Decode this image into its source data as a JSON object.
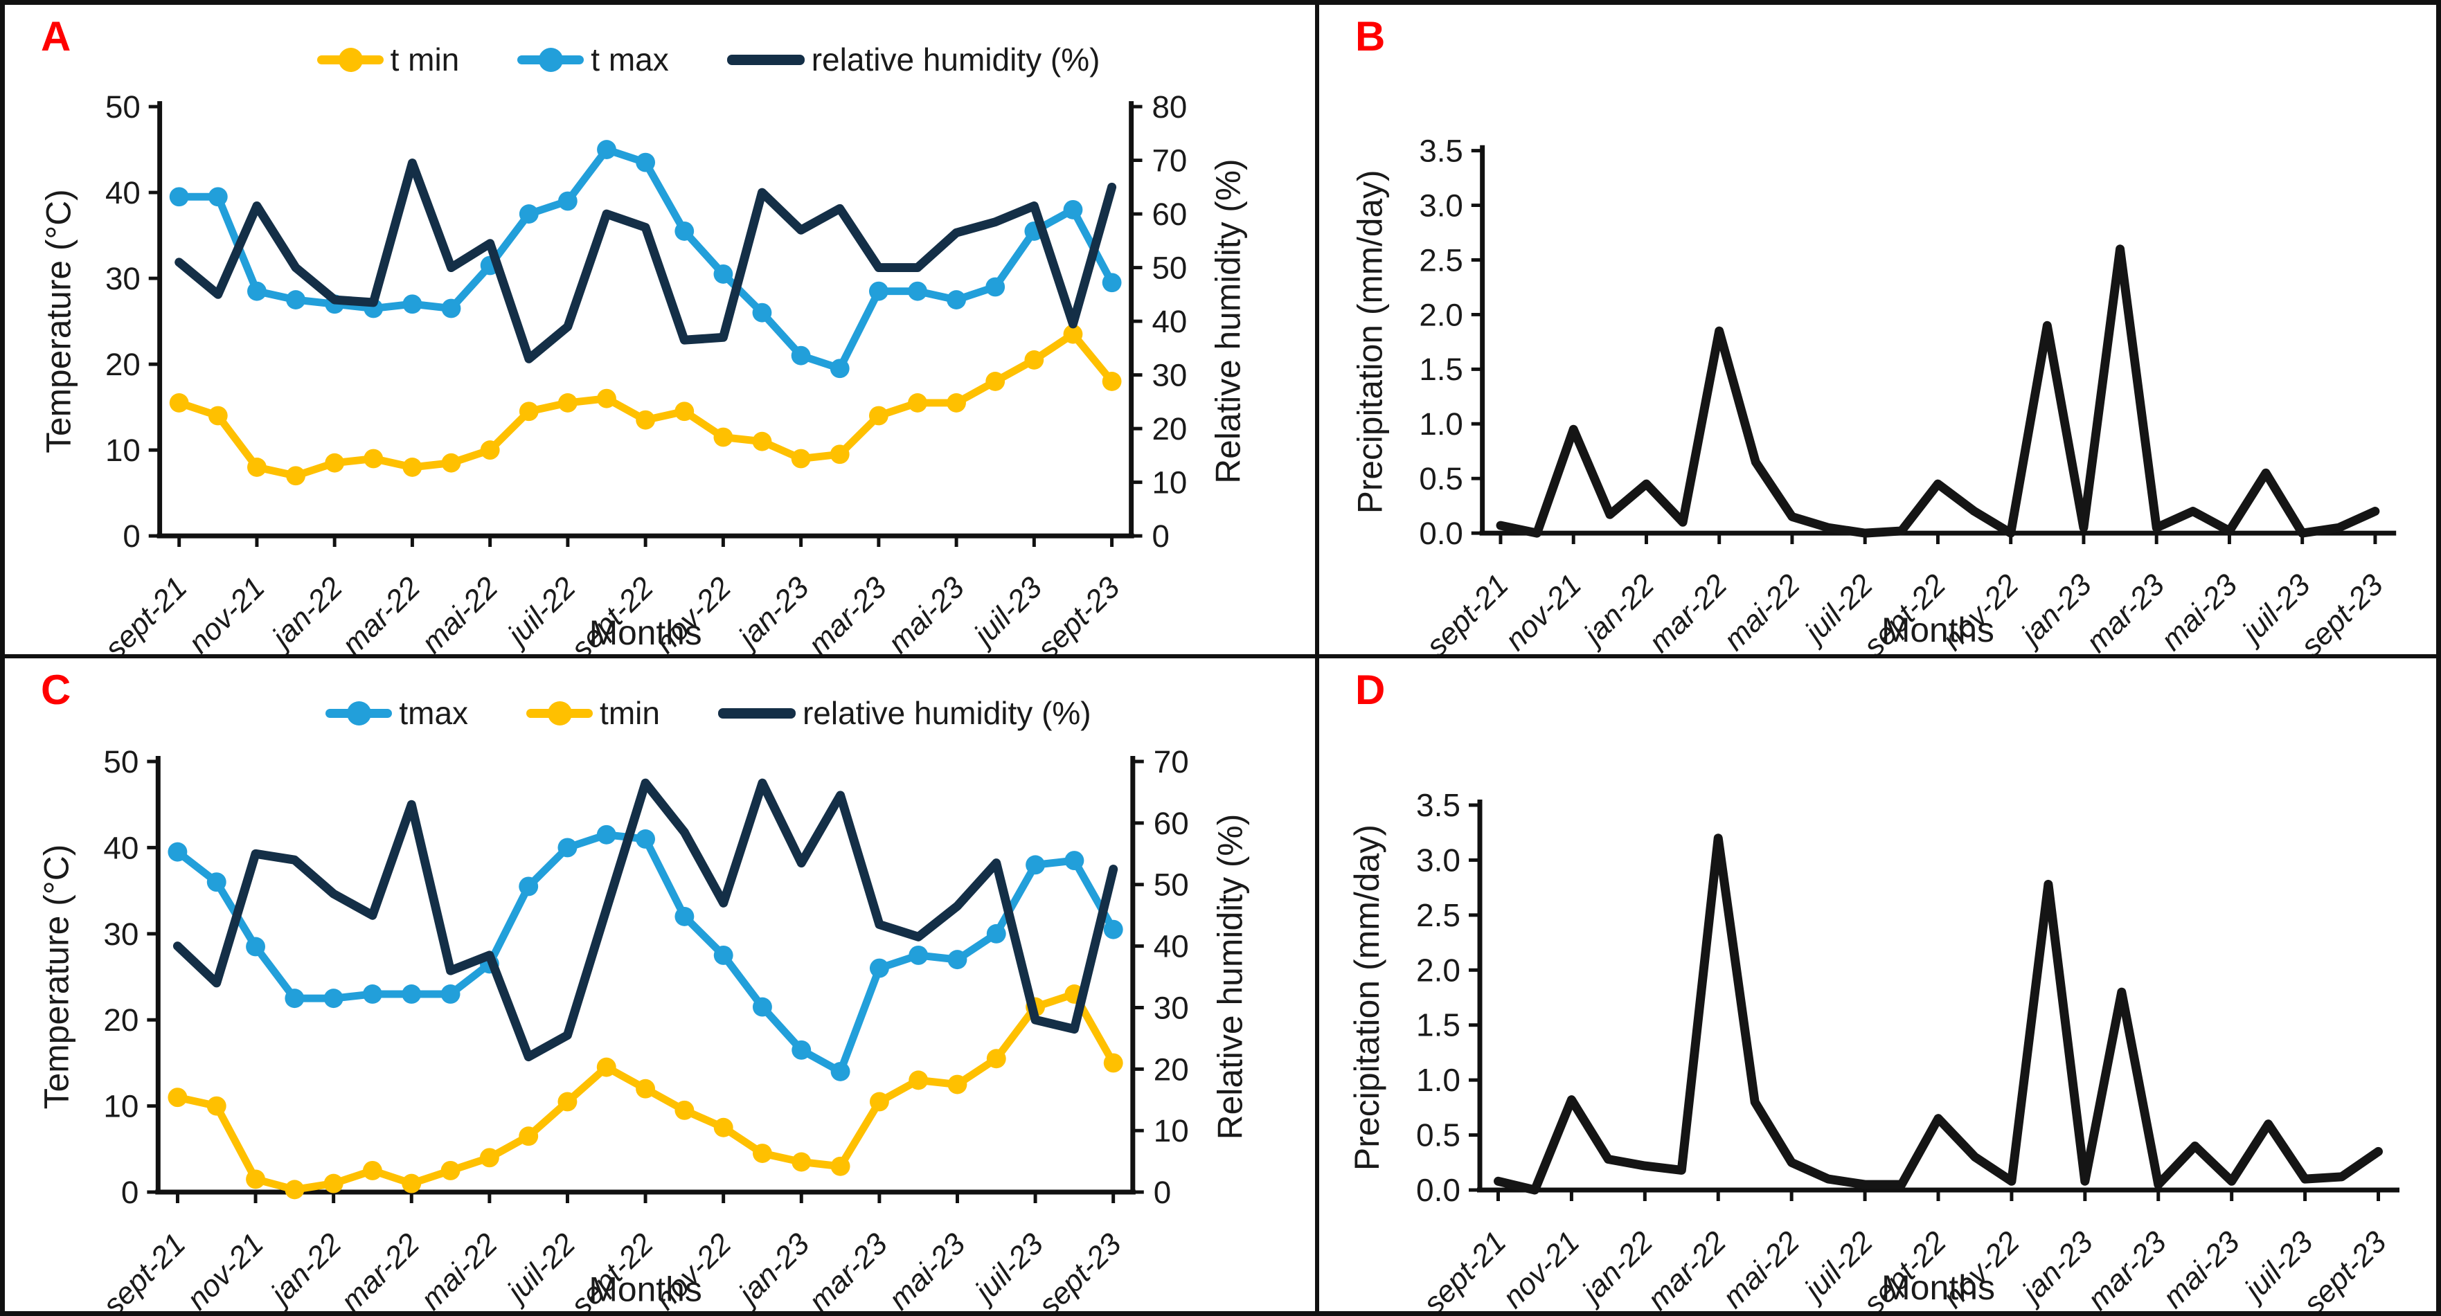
{
  "figure": {
    "background": "#ffffff",
    "frame_color": "#111111"
  },
  "colors": {
    "tmin": "#FFC000",
    "tmax": "#229FDA",
    "humidity": "#142F47",
    "precipitation": "#151515",
    "panel_letter": "#FF0000",
    "text": "#1a1a1a"
  },
  "months_axis": {
    "title": "Months",
    "tick_labels": [
      "sept-21",
      "nov-21",
      "jan-22",
      "mar-22",
      "mai-22",
      "juil-22",
      "sept-22",
      "nov-22",
      "jan-23",
      "mar-23",
      "mai-23",
      "juil-23",
      "sept-23"
    ],
    "points_per_series": 25
  },
  "panels": [
    {
      "id": "A",
      "letter": "A",
      "kind": "climate",
      "legend": [
        {
          "key": "tmin",
          "label": "t min"
        },
        {
          "key": "tmax",
          "label": "t max"
        },
        {
          "key": "humidity",
          "label": "relative humidity (%)"
        }
      ],
      "left_axis": {
        "title": "Temperature (°C)",
        "min": 0,
        "max": 50,
        "step": 10
      },
      "right_axis": {
        "title": "Relative humidity (%)",
        "min": 0,
        "max": 80,
        "step": 10
      }
    },
    {
      "id": "B",
      "letter": "B",
      "kind": "precip",
      "left_axis": {
        "title": "Precipitation (mm/day)",
        "min": 0,
        "max": 3.5,
        "step": 0.5
      }
    },
    {
      "id": "C",
      "letter": "C",
      "kind": "climate",
      "legend": [
        {
          "key": "tmax",
          "label": "tmax"
        },
        {
          "key": "tmin",
          "label": "tmin"
        },
        {
          "key": "humidity",
          "label": "relative humidity (%)"
        }
      ],
      "left_axis": {
        "title": "Temperature (°C)",
        "min": 0,
        "max": 50,
        "step": 10
      },
      "right_axis": {
        "title": "Relative humidity (%)",
        "min": 0,
        "max": 70,
        "step": 10
      }
    },
    {
      "id": "D",
      "letter": "D",
      "kind": "precip",
      "left_axis": {
        "title": "Precipitation (mm/day)",
        "min": 0,
        "max": 3.5,
        "step": 0.5
      }
    }
  ],
  "chart_data": [
    {
      "panel": "A",
      "type": "line",
      "title": "",
      "xlabel": "Months",
      "ylabel_left": "Temperature (°C)",
      "ylabel_right": "Relative humidity (%)",
      "ylim_left": [
        0,
        50
      ],
      "ylim_right": [
        0,
        80
      ],
      "x_tick_labels": [
        "sept-21",
        "nov-21",
        "jan-22",
        "mar-22",
        "mai-22",
        "juil-22",
        "sept-22",
        "nov-22",
        "jan-23",
        "mar-23",
        "mai-23",
        "juil-23",
        "sept-23"
      ],
      "series": [
        {
          "name": "t min",
          "axis": "left",
          "color_key": "tmin",
          "markers": true,
          "values": [
            15.5,
            14,
            8,
            7,
            8.5,
            9,
            8,
            8.5,
            10,
            14.5,
            15.5,
            16,
            13.5,
            14.5,
            11.5,
            11,
            9,
            9.5,
            14,
            15.5,
            15.5,
            18,
            20.5,
            23.5,
            18
          ]
        },
        {
          "name": "t max",
          "axis": "left",
          "color_key": "tmax",
          "markers": true,
          "values": [
            39.5,
            39.5,
            28.5,
            27.5,
            27,
            26.5,
            27,
            26.5,
            31.5,
            37.5,
            39,
            45,
            43.5,
            35.5,
            30.5,
            26,
            21,
            19.5,
            28.5,
            28.5,
            27.5,
            29,
            35.5,
            38,
            29.5
          ]
        },
        {
          "name": "relative humidity (%)",
          "axis": "right",
          "color_key": "humidity",
          "markers": false,
          "values": [
            51,
            45,
            61.5,
            50,
            44,
            43.5,
            69.5,
            50,
            54.5,
            33,
            39,
            60,
            57.5,
            36.5,
            37,
            64,
            57,
            61,
            50,
            50,
            56.5,
            58.5,
            61.5,
            39.5,
            65
          ]
        }
      ]
    },
    {
      "panel": "B",
      "type": "line",
      "title": "",
      "xlabel": "Months",
      "ylabel_left": "Precipitation (mm/day)",
      "ylim_left": [
        0,
        3.5
      ],
      "x_tick_labels": [
        "sept-21",
        "nov-21",
        "jan-22",
        "mar-22",
        "mai-22",
        "juil-22",
        "sept-22",
        "nov-22",
        "jan-23",
        "mar-23",
        "mai-23",
        "juil-23",
        "sept-23"
      ],
      "series": [
        {
          "name": "Precipitation (mm/day)",
          "axis": "left",
          "color_key": "precipitation",
          "markers": false,
          "values": [
            0.07,
            0,
            0.95,
            0.17,
            0.45,
            0.1,
            1.85,
            0.65,
            0.15,
            0.05,
            0,
            0.02,
            0.45,
            0.2,
            0,
            1.9,
            0.05,
            2.6,
            0.05,
            0.2,
            0.02,
            0.55,
            0,
            0.05,
            0.2
          ]
        }
      ]
    },
    {
      "panel": "C",
      "type": "line",
      "title": "",
      "xlabel": "Months",
      "ylabel_left": "Temperature (°C)",
      "ylabel_right": "Relative humidity (%)",
      "ylim_left": [
        0,
        50
      ],
      "ylim_right": [
        0,
        70
      ],
      "x_tick_labels": [
        "sept-21",
        "nov-21",
        "jan-22",
        "mar-22",
        "mai-22",
        "juil-22",
        "sept-22",
        "nov-22",
        "jan-23",
        "mar-23",
        "mai-23",
        "juil-23",
        "sept-23"
      ],
      "series": [
        {
          "name": "tmax",
          "axis": "left",
          "color_key": "tmax",
          "markers": true,
          "values": [
            39.5,
            36,
            28.5,
            22.5,
            22.5,
            23,
            23,
            23,
            26.5,
            35.5,
            40,
            41.5,
            41,
            32,
            27.5,
            21.5,
            16.5,
            14,
            26,
            27.5,
            27,
            30,
            38,
            38.5,
            30.5
          ]
        },
        {
          "name": "tmin",
          "axis": "left",
          "color_key": "tmin",
          "markers": true,
          "values": [
            11,
            10,
            1.5,
            0.3,
            1,
            2.5,
            1,
            2.5,
            4,
            6.5,
            10.5,
            14.5,
            12,
            9.5,
            7.5,
            4.5,
            3.5,
            3,
            10.5,
            13,
            12.5,
            15.5,
            21.5,
            23,
            15
          ]
        },
        {
          "name": "relative humidity (%)",
          "axis": "right",
          "color_key": "humidity",
          "markers": false,
          "values": [
            40,
            34,
            55,
            54,
            48.5,
            45,
            63,
            36,
            38.5,
            22,
            25.5,
            46,
            66.5,
            58.5,
            47,
            66.5,
            53.5,
            64.5,
            43.5,
            41.5,
            46.5,
            53.5,
            28,
            26.5,
            52.5
          ]
        }
      ]
    },
    {
      "panel": "D",
      "type": "line",
      "title": "",
      "xlabel": "Months",
      "ylabel_left": "Precipitation (mm/day)",
      "ylim_left": [
        0,
        3.5
      ],
      "x_tick_labels": [
        "sept-21",
        "nov-21",
        "jan-22",
        "mar-22",
        "mai-22",
        "juil-22",
        "sept-22",
        "nov-22",
        "jan-23",
        "mar-23",
        "mai-23",
        "juil-23",
        "sept-23"
      ],
      "series": [
        {
          "name": "Precipitation (mm/day)",
          "axis": "left",
          "color_key": "precipitation",
          "markers": false,
          "values": [
            0.08,
            0,
            0.82,
            0.28,
            0.22,
            0.18,
            3.2,
            0.8,
            0.25,
            0.1,
            0.05,
            0.05,
            0.65,
            0.3,
            0.08,
            2.78,
            0.08,
            1.8,
            0.05,
            0.4,
            0.08,
            0.6,
            0.1,
            0.12,
            0.35
          ]
        }
      ]
    }
  ]
}
